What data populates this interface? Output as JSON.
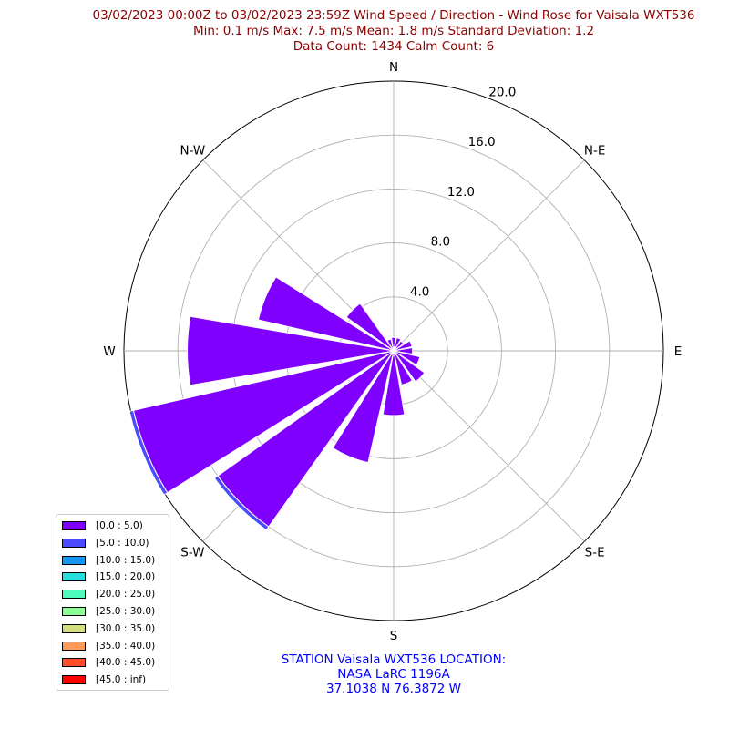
{
  "title_lines": [
    "03/02/2023 00:00Z to 03/02/2023 23:59Z Wind Speed / Direction - Wind Rose for Vaisala WXT536",
    "Min: 0.1 m/s   Max: 7.5 m/s   Mean: 1.8 m/s  Standard Deviation: 1.2",
    "Data Count: 1434  Calm Count:  6"
  ],
  "station_lines": [
    "STATION Vaisala WXT536 LOCATION:",
    "NASA LaRC 1196A",
    "37.1038 N 76.3872 W"
  ],
  "chart_data": {
    "type": "windrose",
    "direction_labels": [
      "N",
      "N-E",
      "E",
      "S-E",
      "S",
      "S-W",
      "W",
      "N-W"
    ],
    "radial_ticks": [
      "4.0",
      "8.0",
      "12.0",
      "16.0",
      "20.0"
    ],
    "rlim": [
      0,
      20
    ],
    "grid": true,
    "legend_position": "lower-left",
    "directions_deg": [
      0,
      22.5,
      45,
      67.5,
      90,
      112.5,
      135,
      157.5,
      180,
      202.5,
      225,
      247.5,
      270,
      292.5,
      315,
      337.5
    ],
    "series": [
      {
        "name": "[0.0 : 5.0)",
        "color": "#8000ff",
        "values": [
          1.0,
          1.0,
          0.9,
          1.4,
          1.4,
          2.0,
          2.8,
          2.6,
          4.8,
          8.5,
          16.0,
          19.8,
          15.3,
          10.3,
          4.3,
          0.9
        ]
      },
      {
        "name": "[5.0 : 10.0)",
        "color": "#4a4aff",
        "values": [
          0,
          0,
          0,
          0,
          0,
          0,
          0,
          0,
          0,
          0,
          0.3,
          0.3,
          0,
          0,
          0,
          0
        ]
      },
      {
        "name": "[10.0 : 15.0)",
        "color": "#1996f3",
        "values": [
          0,
          0,
          0,
          0,
          0,
          0,
          0,
          0,
          0,
          0,
          0,
          0,
          0,
          0,
          0,
          0
        ]
      },
      {
        "name": "[15.0 : 20.0)",
        "color": "#2adddd",
        "values": [
          0,
          0,
          0,
          0,
          0,
          0,
          0,
          0,
          0,
          0,
          0,
          0,
          0,
          0,
          0,
          0
        ]
      },
      {
        "name": "[20.0 : 25.0)",
        "color": "#4efdbe",
        "values": [
          0,
          0,
          0,
          0,
          0,
          0,
          0,
          0,
          0,
          0,
          0,
          0,
          0,
          0,
          0,
          0
        ]
      },
      {
        "name": "[25.0 : 30.0)",
        "color": "#8efd96",
        "values": [
          0,
          0,
          0,
          0,
          0,
          0,
          0,
          0,
          0,
          0,
          0,
          0,
          0,
          0,
          0,
          0
        ]
      },
      {
        "name": "[30.0 : 35.0)",
        "color": "#d4dd80",
        "values": [
          0,
          0,
          0,
          0,
          0,
          0,
          0,
          0,
          0,
          0,
          0,
          0,
          0,
          0,
          0,
          0
        ]
      },
      {
        "name": "[35.0 : 40.0)",
        "color": "#ff9a5a",
        "values": [
          0,
          0,
          0,
          0,
          0,
          0,
          0,
          0,
          0,
          0,
          0,
          0,
          0,
          0,
          0,
          0
        ]
      },
      {
        "name": "[40.0 : 45.0)",
        "color": "#ff4e2a",
        "values": [
          0,
          0,
          0,
          0,
          0,
          0,
          0,
          0,
          0,
          0,
          0,
          0,
          0,
          0,
          0,
          0
        ]
      },
      {
        "name": "[45.0 : inf)",
        "color": "#ff0000",
        "values": [
          0,
          0,
          0,
          0,
          0,
          0,
          0,
          0,
          0,
          0,
          0,
          0,
          0,
          0,
          0,
          0
        ]
      }
    ]
  }
}
